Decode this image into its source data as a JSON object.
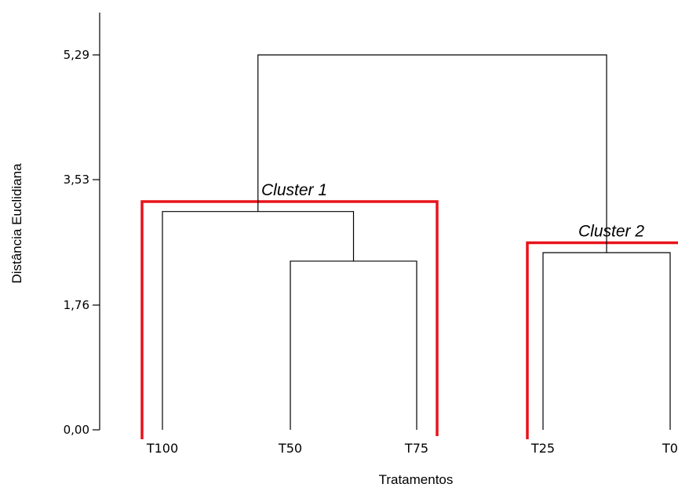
{
  "chart_data": {
    "type": "dendrogram",
    "xlabel": "Tratamentos",
    "ylabel": "Distância Euclidiana",
    "ylim": [
      0,
      5.9
    ],
    "yticks": [
      "0,00",
      "1,76",
      "3,53",
      "5,29"
    ],
    "ytick_values": [
      0,
      1.76,
      3.53,
      5.29
    ],
    "leaves": [
      "T100",
      "T50",
      "T75",
      "T25",
      "T0"
    ],
    "merges": [
      {
        "name": "T50-T75",
        "left": "T50",
        "right": "T75",
        "height": 2.38
      },
      {
        "name": "T25-T0",
        "left": "T25",
        "right": "T0",
        "height": 2.5
      },
      {
        "name": "T100-(T50-T75)",
        "left": "T100",
        "right": "T50-T75",
        "height": 3.08
      },
      {
        "name": "root",
        "left": "T100-(T50-T75)",
        "right": "T25-T0",
        "height": 5.29
      }
    ],
    "clusters": [
      {
        "label": "Cluster 1",
        "members": [
          "T100",
          "T50",
          "T75"
        ],
        "height": 3.22,
        "color": "#e8141b"
      },
      {
        "label": "Cluster 2",
        "members": [
          "T25",
          "T0"
        ],
        "height": 2.64,
        "color": "#e8141b"
      }
    ]
  }
}
